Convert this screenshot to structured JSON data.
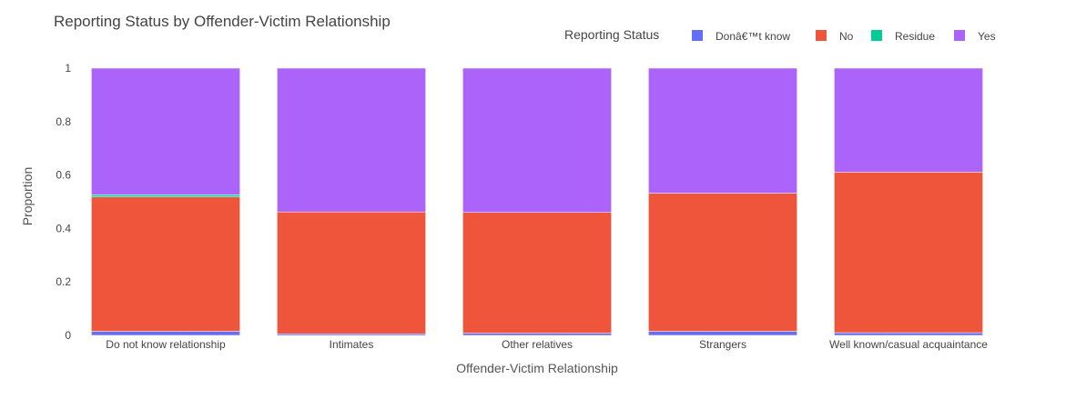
{
  "chart_data": {
    "type": "bar",
    "stacked": true,
    "title": "Reporting Status by Offender-Victim Relationship",
    "xlabel": "Offender-Victim Relationship",
    "ylabel": "Proportion",
    "ylim": [
      0,
      1
    ],
    "yticks": [
      "0",
      "0.2",
      "0.4",
      "0.6",
      "0.8",
      "1"
    ],
    "grid": false,
    "legend": {
      "title": "Reporting Status",
      "placement": "top-right"
    },
    "categories": [
      "Do not know relationship",
      "Intimates",
      "Other relatives",
      "Strangers",
      "Well known/casual acquaintance"
    ],
    "series": [
      {
        "name": "Donâ€™t know",
        "color": "#636efa",
        "values": [
          0.015,
          0.006,
          0.008,
          0.015,
          0.01
        ]
      },
      {
        "name": "No",
        "color": "#ef553b",
        "values": [
          0.503,
          0.456,
          0.452,
          0.517,
          0.601
        ]
      },
      {
        "name": "Residue",
        "color": "#00cc96",
        "values": [
          0.008,
          0.0,
          0.0,
          0.0,
          0.0
        ]
      },
      {
        "name": "Yes",
        "color": "#ab63fa",
        "values": [
          0.474,
          0.538,
          0.54,
          0.468,
          0.389
        ]
      }
    ]
  }
}
